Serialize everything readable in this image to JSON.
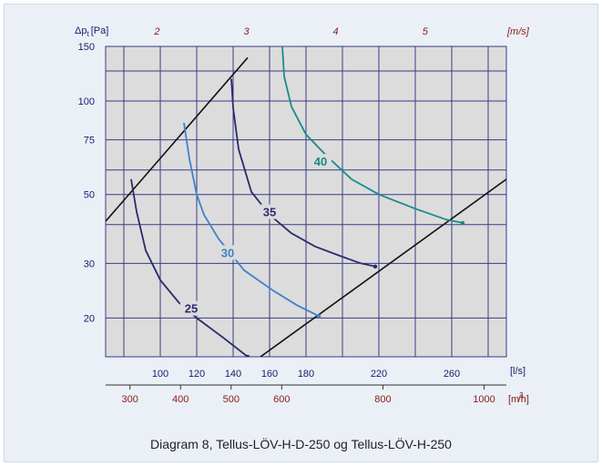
{
  "caption": "Diagram 8, Tellus-LÖV-H-D-250 og Tellus-LÖV-H-250",
  "chart_data": {
    "type": "line",
    "y_axis": {
      "label_main": "Δp",
      "label_sub": "t",
      "label_unit": "[Pa]",
      "scale": "log",
      "range": [
        15,
        150
      ],
      "ticks": [
        {
          "value": 150,
          "label": "150"
        },
        {
          "value": 100,
          "label": "100"
        },
        {
          "value": 75,
          "label": "75"
        },
        {
          "value": 50,
          "label": "50"
        },
        {
          "value": 30,
          "label": "30"
        },
        {
          "value": 20,
          "label": "20"
        }
      ]
    },
    "x_axis_ls": {
      "unit": "[l/s]",
      "range": [
        70,
        290
      ],
      "ticks": [
        "100",
        "120",
        "140",
        "160",
        "180",
        "220",
        "260"
      ],
      "tick_values": [
        100,
        120,
        140,
        160,
        180,
        220,
        260
      ]
    },
    "x_axis_m3h": {
      "unit_main": "[m",
      "unit_sup": "3",
      "unit_end": "/h]",
      "ticks": [
        "300",
        "400",
        "500",
        "600",
        "800",
        "1000"
      ],
      "tick_values": [
        300,
        400,
        500,
        600,
        800,
        1000
      ]
    },
    "x_axis_ms": {
      "unit": "[m/s]",
      "ticks": [
        "2",
        "3",
        "4",
        "5"
      ],
      "tick_values_ls": [
        98.2,
        147.3,
        196.3,
        245.4
      ]
    },
    "grid_ls": [
      80,
      100,
      120,
      140,
      160,
      180,
      200,
      220,
      240,
      260,
      280
    ],
    "grid_pa": [
      20,
      30,
      40,
      50,
      60,
      75,
      100,
      125,
      150
    ],
    "colors": {
      "curve_25": "#2b2a6b",
      "curve_30": "#3f82c8",
      "curve_35": "#2b2a6b",
      "curve_40": "#1a8a8a",
      "limit": "#111111",
      "grid": "#3a3a8a",
      "axis_text": "#1a1a6e",
      "secondary_text": "#8b1a1a"
    },
    "limit_lines": [
      {
        "points": [
          [
            70,
            41
          ],
          [
            148,
            138
          ]
        ]
      },
      {
        "points": [
          [
            155,
            15
          ],
          [
            290,
            56
          ]
        ]
      }
    ],
    "series": [
      {
        "name": "25",
        "color_key": "curve_25",
        "label_at": [
          117,
          21.5
        ],
        "points": [
          [
            84,
            56
          ],
          [
            87,
            44
          ],
          [
            92,
            33
          ],
          [
            100,
            26.5
          ],
          [
            110,
            22.5
          ],
          [
            120,
            20
          ],
          [
            135,
            17.2
          ],
          [
            148,
            15
          ]
        ]
      },
      {
        "name": "30",
        "color_key": "curve_30",
        "label_at": [
          137,
          32.5
        ],
        "points": [
          [
            113,
            85
          ],
          [
            116,
            65
          ],
          [
            120,
            50
          ],
          [
            124,
            43
          ],
          [
            132,
            36
          ],
          [
            146,
            28.5
          ],
          [
            162,
            24.5
          ],
          [
            175,
            22
          ],
          [
            187,
            20.3
          ]
        ]
      },
      {
        "name": "35",
        "color_key": "curve_35",
        "label_at": [
          160,
          44
        ],
        "points": [
          [
            139,
            118
          ],
          [
            140,
            95
          ],
          [
            143,
            70
          ],
          [
            150,
            51
          ],
          [
            160,
            43
          ],
          [
            172,
            37.5
          ],
          [
            185,
            34
          ],
          [
            200,
            31.5
          ],
          [
            210,
            30
          ],
          [
            218,
            29.3
          ]
        ]
      },
      {
        "name": "40",
        "color_key": "curve_40",
        "label_at": [
          188,
          64
        ],
        "points": [
          [
            167,
            150
          ],
          [
            168,
            120
          ],
          [
            172,
            96
          ],
          [
            180,
            78
          ],
          [
            192,
            66
          ],
          [
            205,
            56
          ],
          [
            220,
            50
          ],
          [
            240,
            45
          ],
          [
            257,
            41.5
          ],
          [
            266,
            40.5
          ]
        ]
      }
    ]
  }
}
